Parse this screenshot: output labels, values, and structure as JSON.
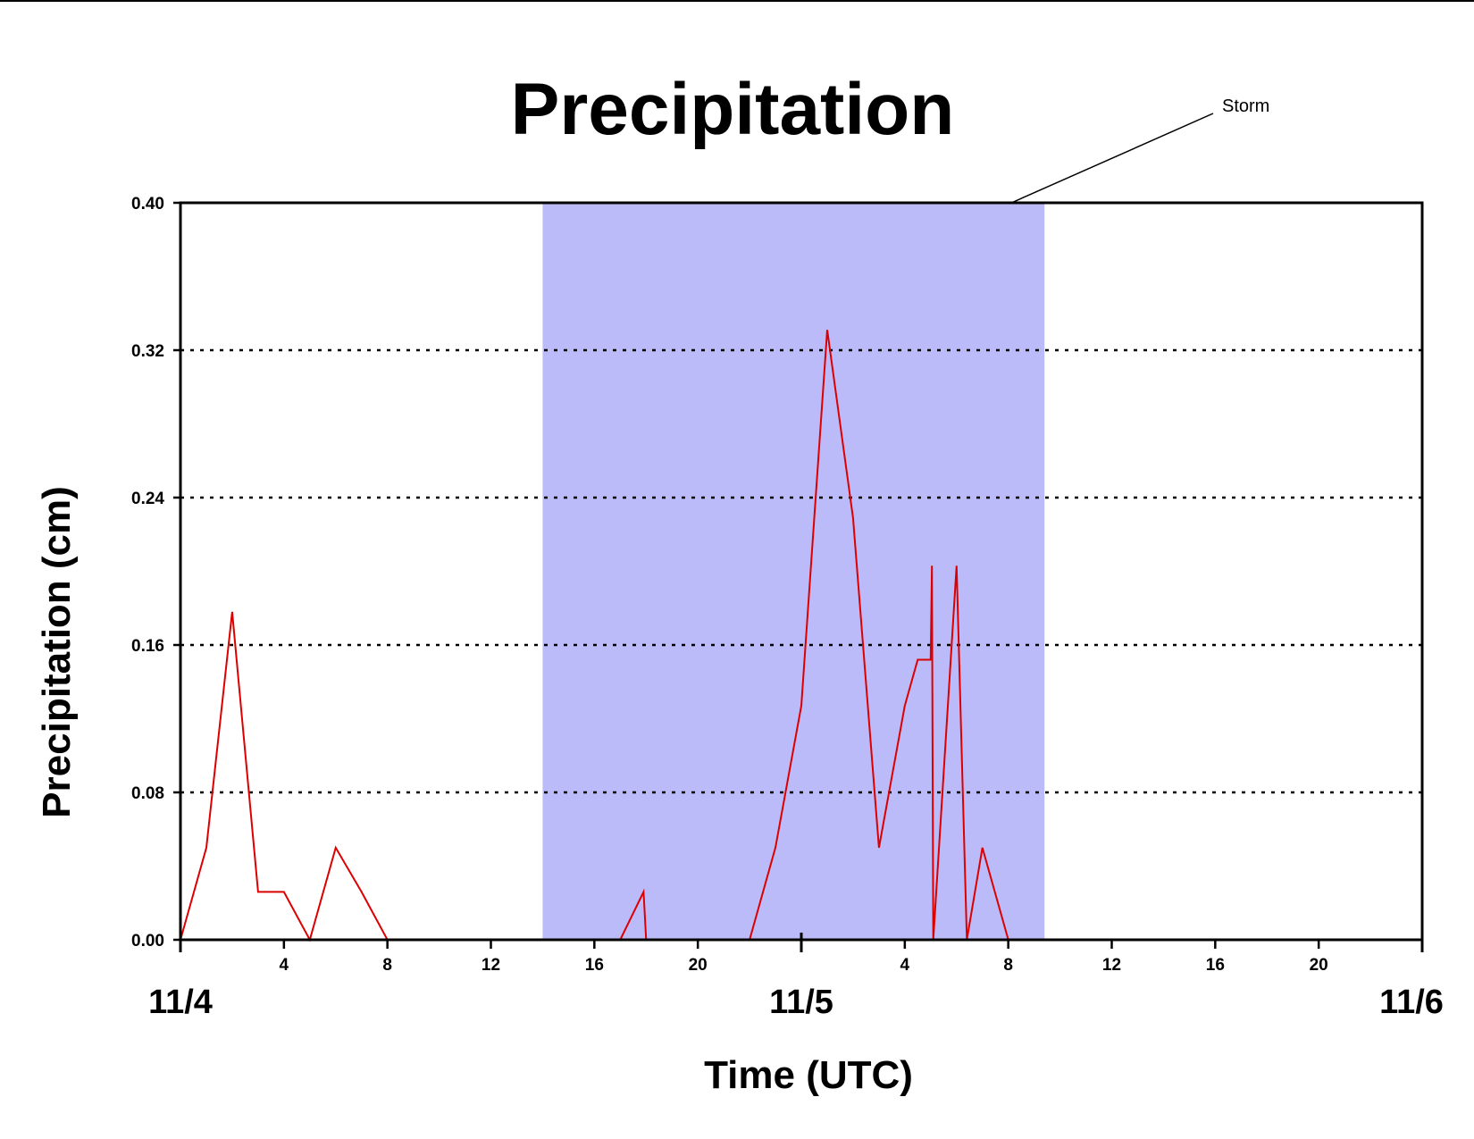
{
  "chart_data": {
    "type": "line",
    "title": "Precipitation",
    "xlabel": "Time (UTC)",
    "ylabel": "Precipitation (cm)",
    "ylim": [
      0,
      0.4
    ],
    "xlim_hours": [
      0,
      48
    ],
    "yticks": [
      0.0,
      0.08,
      0.16,
      0.24,
      0.32,
      0.4
    ],
    "ytick_labels": [
      "0.00",
      "0.08",
      "0.16",
      "0.24",
      "0.32",
      "0.40"
    ],
    "xticks_hours": [
      4,
      8,
      12,
      16,
      20,
      28,
      32,
      36,
      40,
      44
    ],
    "xtick_labels": [
      "4",
      "8",
      "12",
      "16",
      "20",
      "4",
      "8",
      "12",
      "16",
      "20"
    ],
    "date_labels": [
      {
        "hour": 0,
        "label": "11/4"
      },
      {
        "hour": 24,
        "label": "11/5"
      },
      {
        "hour": 48,
        "label": "11/6"
      }
    ],
    "grid": "horizontal dotted",
    "shaded_region": {
      "label": "Storm",
      "start_hour": 14,
      "end_hour": 33.4,
      "color": "#bbbbf9"
    },
    "series": [
      {
        "color": "#dd0000",
        "x": [
          0,
          1,
          2,
          3,
          4,
          5,
          6,
          7,
          8,
          9,
          10,
          11,
          12,
          13,
          14,
          15,
          16,
          17,
          17.9,
          18,
          19,
          20,
          21,
          22,
          23,
          24,
          25,
          26,
          27,
          28,
          28.5,
          29,
          29.05,
          29.1,
          30,
          30.4,
          31,
          32,
          33,
          34,
          35,
          36,
          37,
          38,
          38.5,
          39,
          40,
          40.1,
          40.2,
          41,
          41.05,
          41.2,
          41.6,
          42,
          43,
          43.05,
          44,
          44.1
        ],
        "y": [
          0.0,
          0.05,
          0.178,
          0.026,
          0.026,
          0.0,
          0.05,
          0.026,
          0.0,
          0.0,
          0.0,
          0.0,
          0.0,
          0.0,
          0.0,
          0.0,
          0.0,
          0.0,
          0.026,
          0.0,
          0.0,
          0.0,
          0.0,
          0.0,
          0.05,
          0.127,
          0.331,
          0.229,
          0.05,
          0.127,
          0.152,
          0.152,
          0.203,
          0.0,
          0.203,
          0.0,
          0.05,
          0.0,
          0.0,
          0.0,
          0.0,
          0.0,
          0.0,
          0.0,
          0.0,
          0.0,
          0.0,
          0.0,
          0.0,
          0.0,
          0.0,
          0.0,
          0.0,
          0.0,
          0.0,
          0.0,
          0.0,
          0.0
        ]
      }
    ]
  }
}
